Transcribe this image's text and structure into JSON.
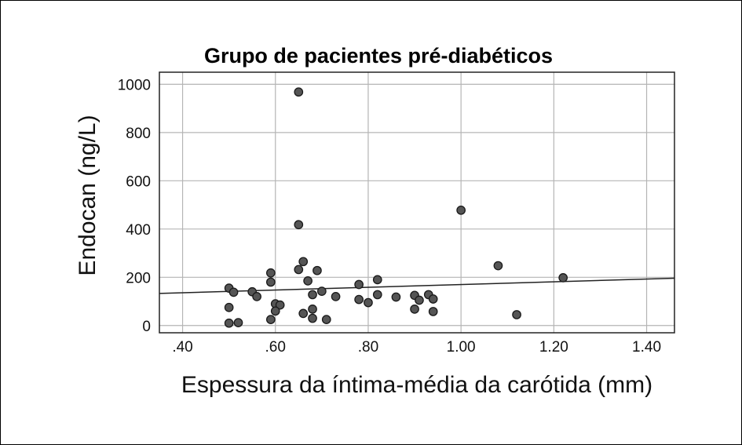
{
  "chart_data": {
    "type": "scatter",
    "title": "Grupo de pacientes pré-diabéticos",
    "xlabel": "Espessura da íntima-média da carótida (mm)",
    "ylabel": "Endocan (ng/L)",
    "xlim": [
      0.35,
      1.46
    ],
    "ylim": [
      -30,
      1050
    ],
    "x_ticks": [
      0.4,
      0.6,
      0.8,
      1.0,
      1.2,
      1.4
    ],
    "x_tick_labels": [
      ".40",
      ".60",
      ".80",
      "1.00",
      "1.20",
      "1.40"
    ],
    "y_ticks": [
      0,
      200,
      400,
      600,
      800,
      1000
    ],
    "y_tick_labels": [
      "0",
      "200",
      "400",
      "600",
      "800",
      "1000"
    ],
    "grid": true,
    "fit_line": {
      "x": [
        0.35,
        1.46
      ],
      "y": [
        133,
        196
      ]
    },
    "points": [
      {
        "x": 0.5,
        "y": 155
      },
      {
        "x": 0.51,
        "y": 138
      },
      {
        "x": 0.5,
        "y": 75
      },
      {
        "x": 0.5,
        "y": 10
      },
      {
        "x": 0.52,
        "y": 12
      },
      {
        "x": 0.55,
        "y": 140
      },
      {
        "x": 0.56,
        "y": 120
      },
      {
        "x": 0.59,
        "y": 218
      },
      {
        "x": 0.59,
        "y": 180
      },
      {
        "x": 0.6,
        "y": 90
      },
      {
        "x": 0.61,
        "y": 85
      },
      {
        "x": 0.6,
        "y": 60
      },
      {
        "x": 0.59,
        "y": 25
      },
      {
        "x": 0.65,
        "y": 968
      },
      {
        "x": 0.65,
        "y": 418
      },
      {
        "x": 0.65,
        "y": 232
      },
      {
        "x": 0.66,
        "y": 265
      },
      {
        "x": 0.67,
        "y": 185
      },
      {
        "x": 0.69,
        "y": 228
      },
      {
        "x": 0.7,
        "y": 142
      },
      {
        "x": 0.68,
        "y": 128
      },
      {
        "x": 0.68,
        "y": 68
      },
      {
        "x": 0.66,
        "y": 50
      },
      {
        "x": 0.68,
        "y": 30
      },
      {
        "x": 0.71,
        "y": 25
      },
      {
        "x": 0.73,
        "y": 120
      },
      {
        "x": 0.78,
        "y": 170
      },
      {
        "x": 0.78,
        "y": 108
      },
      {
        "x": 0.8,
        "y": 95
      },
      {
        "x": 0.82,
        "y": 190
      },
      {
        "x": 0.82,
        "y": 128
      },
      {
        "x": 0.86,
        "y": 118
      },
      {
        "x": 0.9,
        "y": 125
      },
      {
        "x": 0.91,
        "y": 105
      },
      {
        "x": 0.93,
        "y": 128
      },
      {
        "x": 0.94,
        "y": 110
      },
      {
        "x": 0.9,
        "y": 68
      },
      {
        "x": 0.94,
        "y": 58
      },
      {
        "x": 1.0,
        "y": 478
      },
      {
        "x": 1.08,
        "y": 248
      },
      {
        "x": 1.12,
        "y": 45
      },
      {
        "x": 1.22,
        "y": 198
      }
    ]
  }
}
